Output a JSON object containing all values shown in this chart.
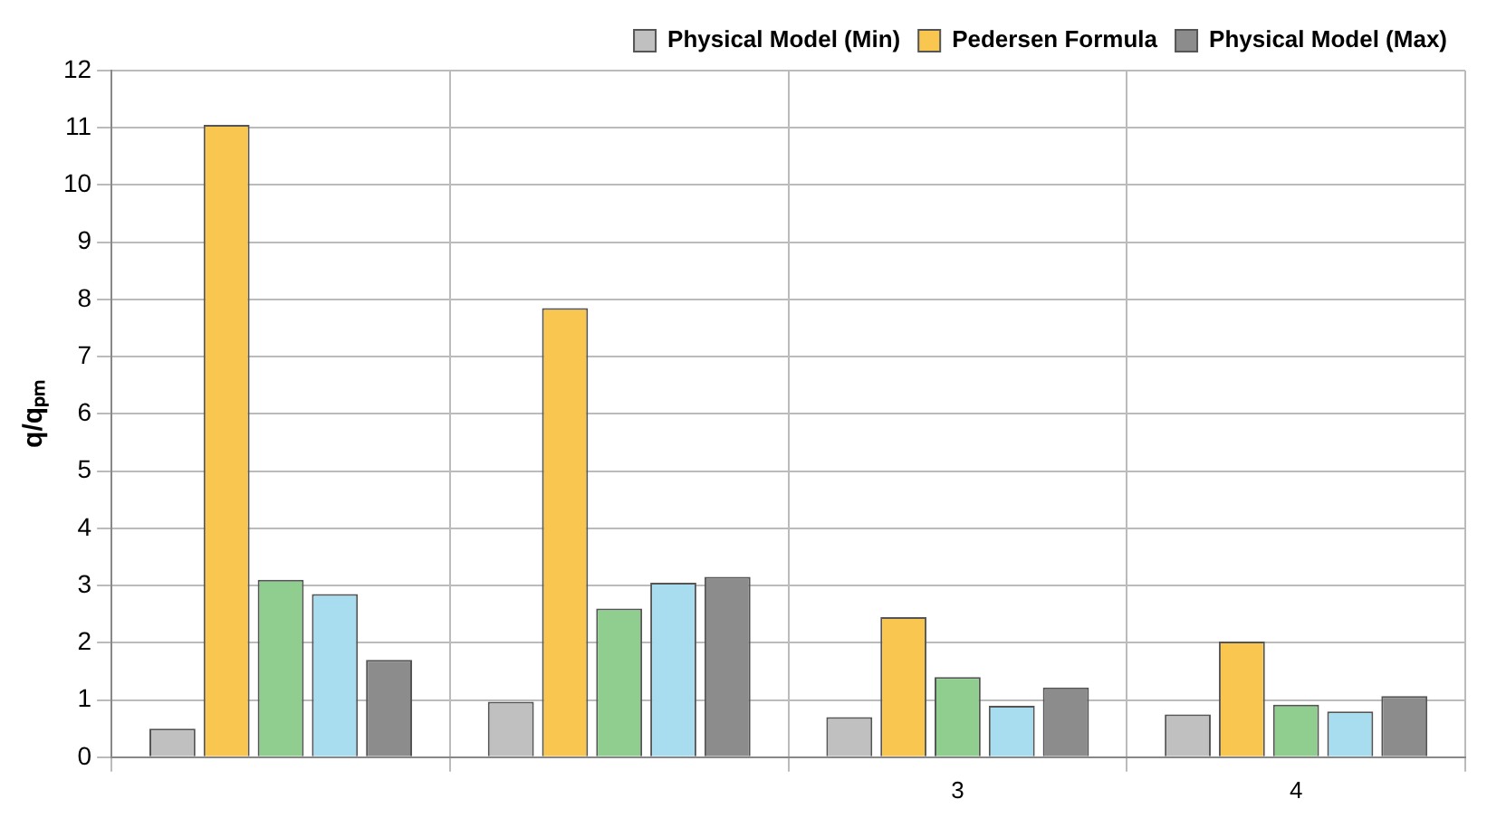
{
  "chart_data": {
    "type": "bar",
    "ylabel": "q/qₚₘ",
    "categories": [
      null,
      null,
      "3",
      "4"
    ],
    "series": [
      {
        "name": "Physical Model (Min)",
        "color": "#c0c0c0",
        "values": [
          0.5,
          0.97,
          0.7,
          0.75
        ]
      },
      {
        "name": "Pedersen Formula",
        "color": "#f9c74f",
        "values": [
          11.05,
          7.85,
          2.45,
          2.02
        ]
      },
      {
        "color": "#8fce8f",
        "values": [
          3.1,
          2.6,
          1.4,
          0.92
        ]
      },
      {
        "color": "#a8dcef",
        "values": [
          2.85,
          3.05,
          0.9,
          0.8
        ]
      },
      {
        "name": "Physical Model (Max)",
        "color": "#8c8c8c",
        "values": [
          1.7,
          3.15,
          1.22,
          1.07
        ]
      }
    ],
    "ylim": [
      0,
      12
    ],
    "yticks": [
      0,
      1,
      2,
      3,
      4,
      5,
      6,
      7,
      8,
      9,
      10,
      11,
      12
    ],
    "grid": true,
    "legend": "top right"
  }
}
